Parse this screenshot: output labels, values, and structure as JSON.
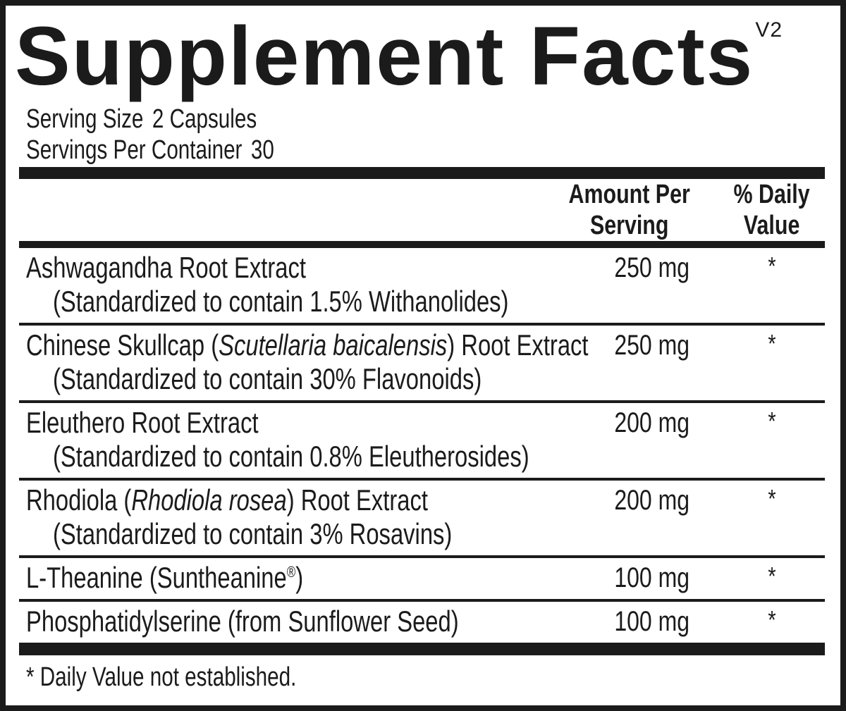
{
  "title": "Supplement Facts",
  "version_tag": "V2",
  "serving": {
    "serving_size_label": "Serving Size",
    "serving_size_value": "2 Capsules",
    "servings_per_container_label": "Servings Per Container",
    "servings_per_container_value": "30"
  },
  "columns": {
    "amount_line1": "Amount Per",
    "amount_line2": "Serving",
    "dv_line1": "% Daily",
    "dv_line2": "Value"
  },
  "ingredients": [
    {
      "name_parts": [
        {
          "text": "Ashwagandha Root Extract"
        }
      ],
      "detail": "(Standardized to contain 1.5% Withanolides)",
      "amount": "250 mg",
      "daily_value": "*"
    },
    {
      "name_parts": [
        {
          "text": "Chinese Skullcap ("
        },
        {
          "text": "Scutellaria baicalensis",
          "italic": true
        },
        {
          "text": ") Root Extract"
        }
      ],
      "detail": "(Standardized to contain 30% Flavonoids)",
      "amount": "250 mg",
      "daily_value": "*"
    },
    {
      "name_parts": [
        {
          "text": "Eleuthero Root Extract"
        }
      ],
      "detail": "(Standardized to contain 0.8% Eleutherosides)",
      "amount": "200 mg",
      "daily_value": "*"
    },
    {
      "name_parts": [
        {
          "text": "Rhodiola ("
        },
        {
          "text": "Rhodiola rosea",
          "italic": true
        },
        {
          "text": ") Root Extract"
        }
      ],
      "detail": "(Standardized to contain 3% Rosavins)",
      "amount": "200 mg",
      "daily_value": "*"
    },
    {
      "name_parts": [
        {
          "text": "L-Theanine (Suntheanine"
        },
        {
          "text": "®",
          "sup": true
        },
        {
          "text": ")"
        }
      ],
      "detail": null,
      "amount": "100 mg",
      "daily_value": "*"
    },
    {
      "name_parts": [
        {
          "text": "Phosphatidylserine (from Sunflower Seed)"
        }
      ],
      "detail": null,
      "amount": "100 mg",
      "daily_value": "*"
    }
  ],
  "footnote": "* Daily Value not established.",
  "colors": {
    "ink": "#1b1b1b",
    "background": "#ffffff"
  }
}
